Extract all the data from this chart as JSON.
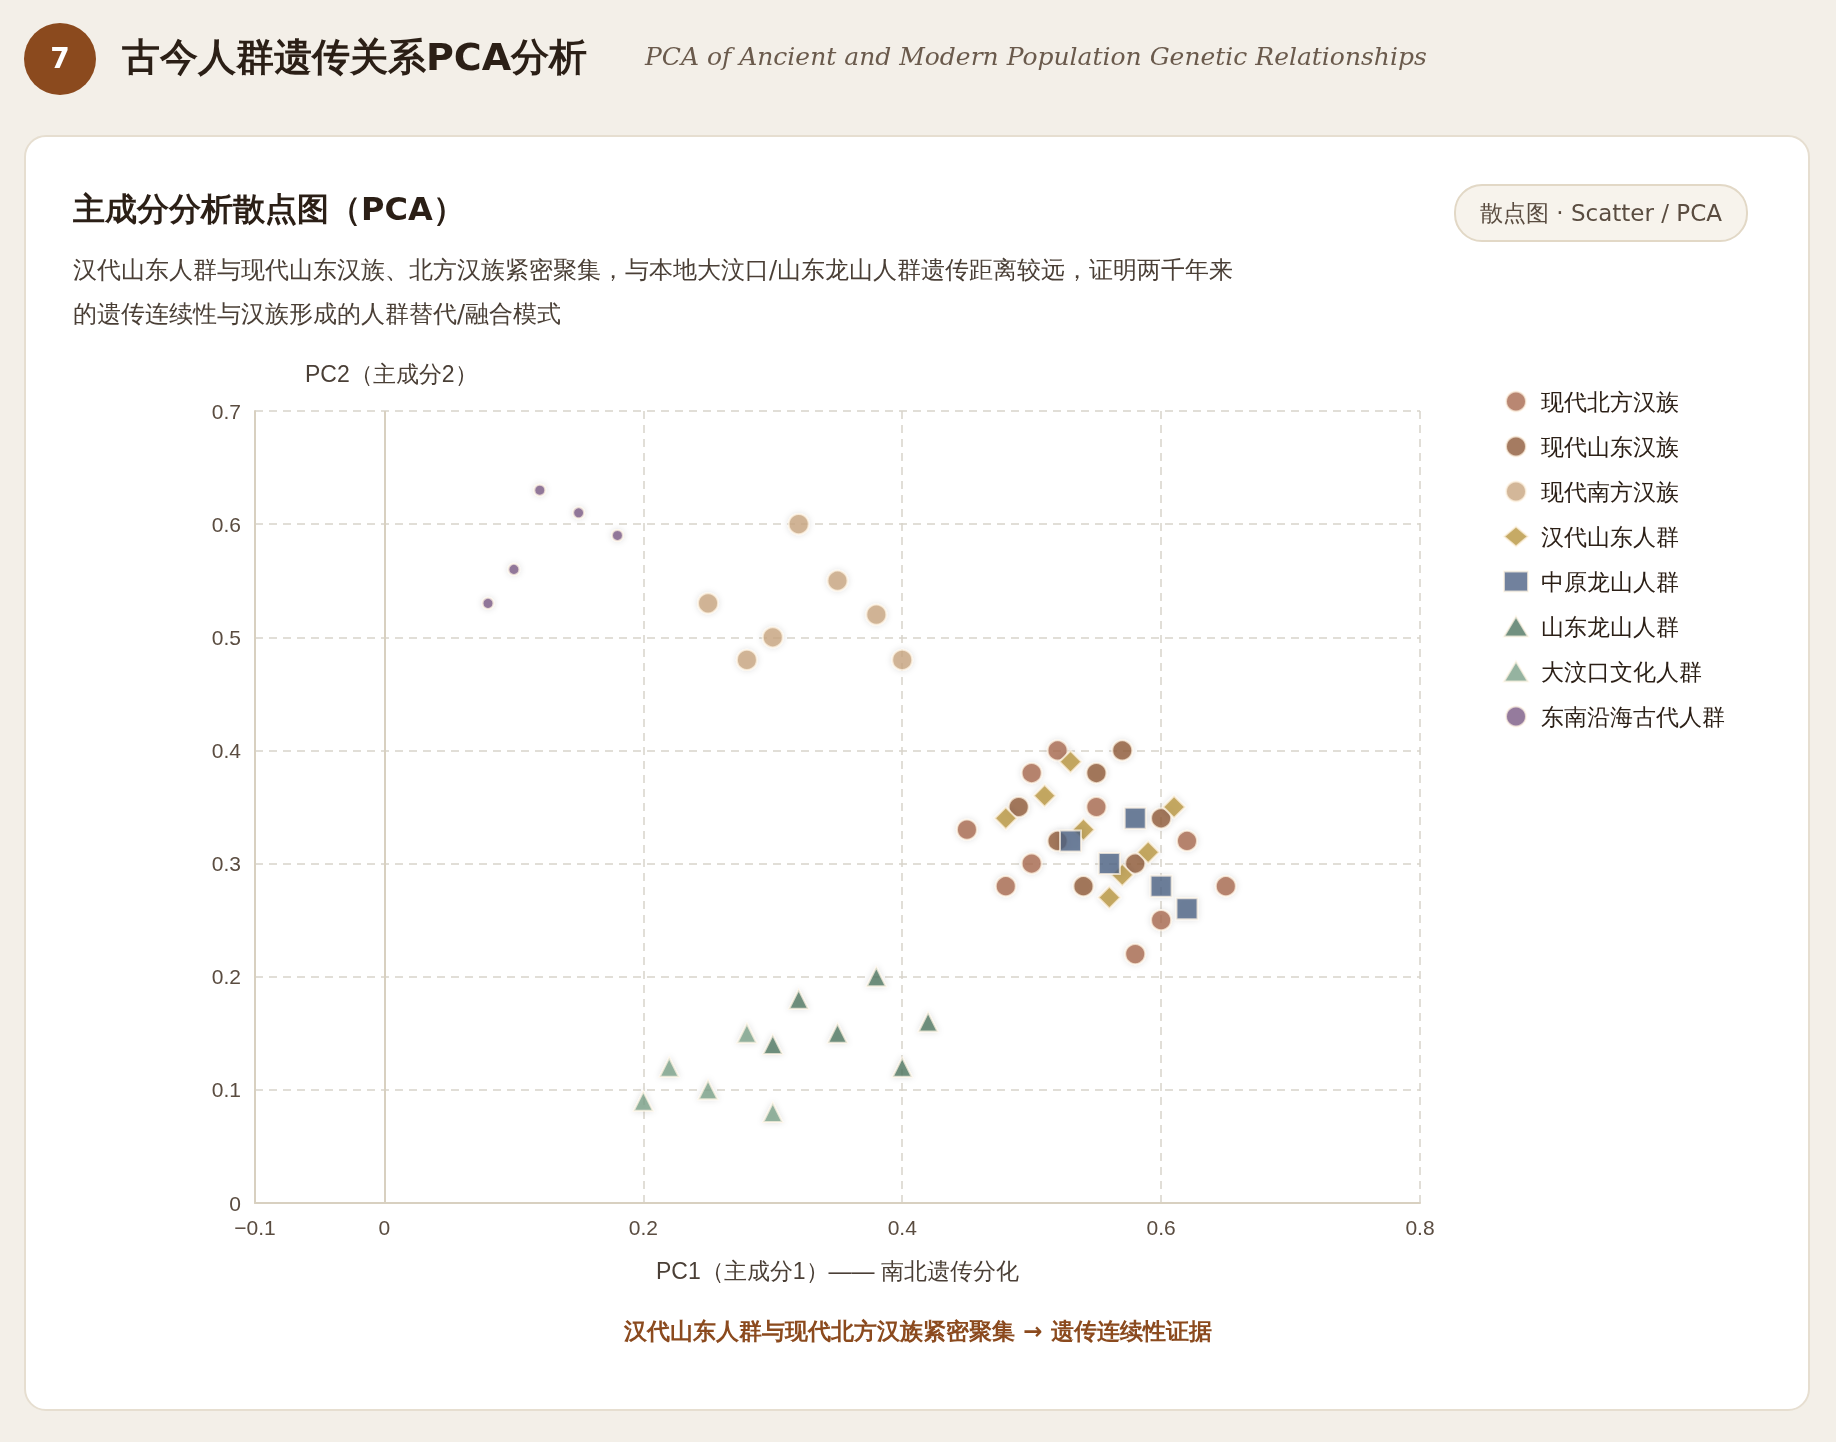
{
  "chart_data": {
    "type": "scatter",
    "title": "主成分分析散点图（PCA）",
    "subtitle": "汉代山东人群与现代山东汉族、北方汉族紧密聚集，与本地大汶口/山东龙山人群遗传距离较远，证明两千年来的遗传连续性与汉族形成的人群替代/融合模式",
    "xlabel": "PC1（主成分1）—— 南北遗传分化",
    "ylabel": "PC2（主成分2）",
    "annotations": [
      "7",
      "古今人群遗传关系PCA分析",
      "PCA of Ancient and Modern Population Genetic Relationships",
      "散点图 · Scatter / PCA",
      "汉代山东人群与现代北方汉族紧密聚集 → 遗传连续性证据"
    ],
    "xlim": [
      -0.1,
      0.8
    ],
    "xticks": [
      -0.1,
      0,
      0.2,
      0.4,
      0.6,
      0.8
    ],
    "ylim": [
      0,
      0.7
    ],
    "yticks": [
      0,
      0.1,
      0.2,
      0.3,
      0.4,
      0.5,
      0.6,
      0.7
    ],
    "grid": true,
    "legend": "right",
    "ref_lines": [
      {
        "axis": "x",
        "value": 0,
        "color": "#d8d0c0",
        "line_style": "solid"
      }
    ],
    "series": [
      {
        "name": "现代北方汉族",
        "color": "#a8694f",
        "marker": "circle",
        "x": [
          0.52,
          0.5,
          0.55,
          0.45,
          0.62,
          0.5,
          0.48,
          0.65,
          0.6,
          0.58
        ],
        "values": [
          0.4,
          0.38,
          0.35,
          0.33,
          0.32,
          0.3,
          0.28,
          0.28,
          0.25,
          0.22
        ]
      },
      {
        "name": "现代山东汉族",
        "color": "#8f5a3a",
        "marker": "circle",
        "x": [
          0.57,
          0.55,
          0.49,
          0.52,
          0.6,
          0.58,
          0.54
        ],
        "values": [
          0.4,
          0.38,
          0.35,
          0.32,
          0.34,
          0.3,
          0.28
        ]
      },
      {
        "name": "现代南方汉族",
        "color": "#c8a57f",
        "marker": "circle",
        "x": [
          0.32,
          0.35,
          0.25,
          0.38,
          0.3,
          0.28,
          0.4
        ],
        "values": [
          0.6,
          0.55,
          0.53,
          0.52,
          0.5,
          0.48,
          0.48
        ]
      },
      {
        "name": "汉代山东人群",
        "color": "#b8953e",
        "marker": "diamond",
        "x": [
          0.53,
          0.51,
          0.48,
          0.54,
          0.61,
          0.59,
          0.57,
          0.56
        ],
        "values": [
          0.39,
          0.36,
          0.34,
          0.33,
          0.35,
          0.31,
          0.29,
          0.27
        ]
      },
      {
        "name": "中原龙山人群",
        "color": "#4e6285",
        "marker": "square",
        "x": [
          0.53,
          0.58,
          0.56,
          0.6,
          0.62
        ],
        "values": [
          0.32,
          0.34,
          0.3,
          0.28,
          0.26
        ]
      },
      {
        "name": "山东龙山人群",
        "color": "#4f7560",
        "marker": "triangle",
        "x": [
          0.32,
          0.38,
          0.42,
          0.35,
          0.3,
          0.4
        ],
        "values": [
          0.18,
          0.2,
          0.16,
          0.15,
          0.14,
          0.12
        ]
      },
      {
        "name": "大汶口文化人群",
        "color": "#7aa088",
        "marker": "triangle",
        "x": [
          0.28,
          0.22,
          0.25,
          0.2,
          0.3
        ],
        "values": [
          0.15,
          0.12,
          0.1,
          0.09,
          0.08
        ]
      },
      {
        "name": "东南沿海古代人群",
        "color": "#7a5a85",
        "marker": "circle",
        "x": [
          0.12,
          0.15,
          0.18,
          0.1,
          0.08
        ],
        "values": [
          0.63,
          0.61,
          0.59,
          0.56,
          0.53
        ]
      }
    ]
  }
}
